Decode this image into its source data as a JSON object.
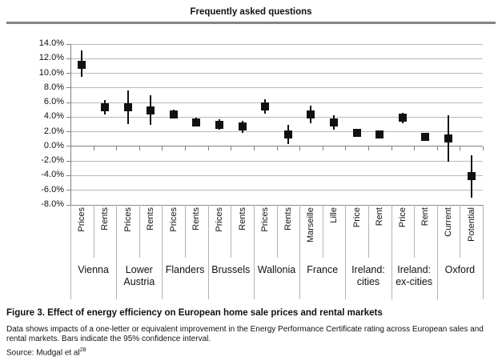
{
  "header": {
    "title": "Frequently asked questions"
  },
  "chart_data": {
    "type": "scatter",
    "marker": "black-square-with-error-bars",
    "ylim": [
      -8,
      14
    ],
    "ytick_step": 2,
    "ytick_labels": [
      "14.0%",
      "12.0%",
      "10.0%",
      "8.0%",
      "6.0%",
      "4.0%",
      "2.0%",
      "0.0%",
      "-2.0%",
      "-4.0%",
      "-6.0%",
      "-8.0%"
    ],
    "grid": true,
    "legend": "none",
    "units": "percent",
    "error_bar_meaning": "95% confidence interval",
    "groups": [
      {
        "label_lines": [
          "Vienna"
        ],
        "items": [
          {
            "label": "Prices",
            "value": 11.2,
            "lo": 9.5,
            "hi": 13.1
          },
          {
            "label": "Rents",
            "value": 5.4,
            "lo": 4.4,
            "hi": 6.3
          }
        ]
      },
      {
        "label_lines": [
          "Lower",
          "Austria"
        ],
        "items": [
          {
            "label": "Prices",
            "value": 5.3,
            "lo": 3.0,
            "hi": 7.7
          },
          {
            "label": "Rents",
            "value": 4.9,
            "lo": 2.9,
            "hi": 7.0
          }
        ]
      },
      {
        "label_lines": [
          "Flanders"
        ],
        "items": [
          {
            "label": "Prices",
            "value": 4.4,
            "lo": 3.8,
            "hi": 5.0
          },
          {
            "label": "Rents",
            "value": 3.3,
            "lo": 2.7,
            "hi": 3.9
          }
        ]
      },
      {
        "label_lines": [
          "Brussels"
        ],
        "items": [
          {
            "label": "Prices",
            "value": 3.0,
            "lo": 2.3,
            "hi": 3.7
          },
          {
            "label": "Rents",
            "value": 2.7,
            "lo": 1.8,
            "hi": 3.5
          }
        ]
      },
      {
        "label_lines": [
          "Wallonia"
        ],
        "items": [
          {
            "label": "Prices",
            "value": 5.5,
            "lo": 4.5,
            "hi": 6.4
          },
          {
            "label": "Rents",
            "value": 1.6,
            "lo": 0.3,
            "hi": 2.9
          }
        ]
      },
      {
        "label_lines": [
          "France"
        ],
        "items": [
          {
            "label": "Marseille",
            "value": 4.4,
            "lo": 3.2,
            "hi": 5.6
          },
          {
            "label": "Lille",
            "value": 3.3,
            "lo": 2.3,
            "hi": 4.3
          }
        ]
      },
      {
        "label_lines": [
          "Ireland:",
          "cities"
        ],
        "items": [
          {
            "label": "Price",
            "value": 1.8,
            "lo": 1.4,
            "hi": 2.2
          },
          {
            "label": "Rent",
            "value": 1.6,
            "lo": 1.2,
            "hi": 2.0
          }
        ]
      },
      {
        "label_lines": [
          "Ireland:",
          "ex-cities"
        ],
        "items": [
          {
            "label": "Price",
            "value": 3.9,
            "lo": 3.2,
            "hi": 4.6
          },
          {
            "label": "Rent",
            "value": 1.3,
            "lo": 0.9,
            "hi": 1.7
          }
        ]
      },
      {
        "label_lines": [
          "Oxford"
        ],
        "items": [
          {
            "label": "Current",
            "value": 1.1,
            "lo": -2.1,
            "hi": 4.3
          },
          {
            "label": "Potential",
            "value": -4.1,
            "lo": -7.0,
            "hi": -1.2
          }
        ]
      }
    ],
    "colors": {
      "marker": "#111111",
      "error_bar": "#111111",
      "gridline": "#bababa",
      "zero_axis": "#7f7f7f",
      "bottom_axis": "#8c8c8c",
      "y_axis": "#7f7f7f",
      "separator": "#b3b3b3",
      "tick": "#7f7f7f"
    }
  },
  "caption": {
    "title": "Figure 3. Effect of energy efficiency on European home sale prices and rental markets",
    "description": "Data shows impacts of a one-letter or equivalent improvement in the Energy Performance Certificate rating across European sales and rental markets. Bars indicate the 95% confidence interval.",
    "source_label": "Source: Mudgal et al",
    "source_sup": "28"
  }
}
